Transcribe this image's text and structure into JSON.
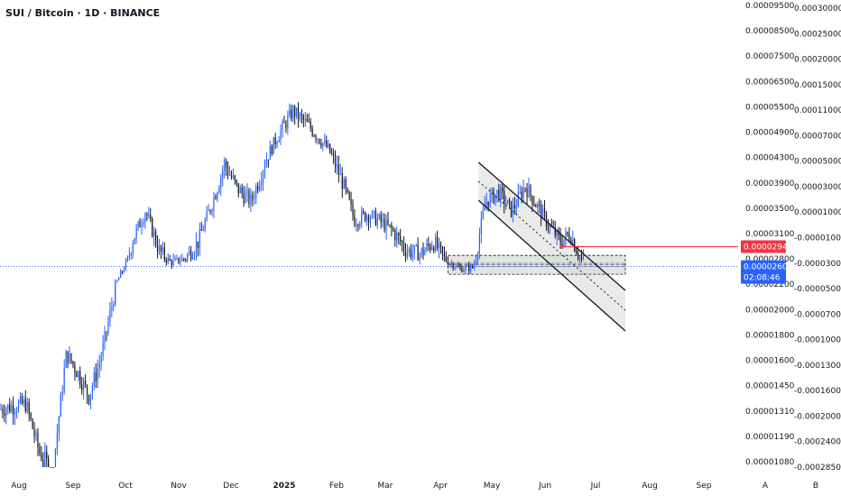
{
  "header": {
    "title": "SUI / Bitcoin · 1D · BINANCE"
  },
  "colors": {
    "up": "#2962ff",
    "down": "#131722",
    "alert": "#f23645",
    "accent": "#2962ff",
    "box": "#d9d9d9"
  },
  "chart_data": {
    "type": "candlestick",
    "title": "SUI / Bitcoin · 1D · BINANCE",
    "x_categories": [
      "Aug",
      "Sep",
      "Oct",
      "Nov",
      "Dec",
      "2025",
      "Feb",
      "Mar",
      "Apr",
      "May",
      "Jun",
      "Jul",
      "Aug",
      "Sep"
    ],
    "y_ticks_left": [
      "0.00009500",
      "0.00008500",
      "0.00007500",
      "0.00006500",
      "0.00005500",
      "0.00004900",
      "0.00004300",
      "0.00003900",
      "0.00003500",
      "0.00003100",
      "0.00002800",
      "0.00002200",
      "0.00002000",
      "0.00001800",
      "0.00001600",
      "0.00001450",
      "0.00001310",
      "0.00001190",
      "0.00001080"
    ],
    "y_ticks_right": [
      "0.00030000",
      "0.00025000",
      "0.00020000",
      "0.00015000",
      "0.00011000",
      "0.00007000",
      "0.00005000",
      "0.00003000",
      "0.00001000",
      "-0.00001000",
      "-0.00003000",
      "-0.00005000",
      "-0.00007000",
      "-0.00010000",
      "-0.00013000",
      "-0.00016000",
      "-0.00020000",
      "-0.00024000",
      "-0.00028500"
    ],
    "price_labels": {
      "alert": "0.00002941",
      "last": "0.00002604",
      "countdown": "02:08:46"
    },
    "scale_buttons": [
      "A",
      "B"
    ],
    "price_path": [
      [
        "Aug",
        1.35e-05
      ],
      [
        "Aug",
        1.12e-05
      ],
      [
        "Aug",
        1.04e-05
      ],
      [
        "Aug",
        1.65e-05
      ],
      [
        "Sep",
        1.52e-05
      ],
      [
        "Sep",
        1.39e-05
      ],
      [
        "Sep",
        1.58e-05
      ],
      [
        "Sep",
        1.95e-05
      ],
      [
        "Sep",
        2.4e-05
      ],
      [
        "Oct",
        3e-05
      ],
      [
        "Oct",
        3.45e-05
      ],
      [
        "Oct",
        2.9e-05
      ],
      [
        "Oct",
        2.7e-05
      ],
      [
        "Nov",
        2.8e-05
      ],
      [
        "Nov",
        3e-05
      ],
      [
        "Nov",
        3.55e-05
      ],
      [
        "Nov",
        4.2e-05
      ],
      [
        "Dec",
        3.8e-05
      ],
      [
        "Dec",
        3.6e-05
      ],
      [
        "Dec",
        4.2e-05
      ],
      [
        "Dec",
        4.8e-05
      ],
      [
        "2025",
        5.4e-05
      ],
      [
        "2025",
        5e-05
      ],
      [
        "2025",
        4.5e-05
      ],
      [
        "Feb",
        3.9e-05
      ],
      [
        "Feb",
        3.3e-05
      ],
      [
        "Feb",
        3.4e-05
      ],
      [
        "Feb",
        3.3e-05
      ],
      [
        "Mar",
        3.15e-05
      ],
      [
        "Mar",
        2.9e-05
      ],
      [
        "Mar",
        2.85e-05
      ],
      [
        "Mar",
        3e-05
      ],
      [
        "Apr",
        2.75e-05
      ],
      [
        "Apr",
        2.55e-05
      ],
      [
        "Apr",
        2.58e-05
      ],
      [
        "Apr",
        3.6e-05
      ],
      [
        "May",
        3.75e-05
      ],
      [
        "May",
        3.45e-05
      ],
      [
        "May",
        3.85e-05
      ],
      [
        "May",
        3.5e-05
      ],
      [
        "Jun",
        3.2e-05
      ],
      [
        "Jun",
        3e-05
      ],
      [
        "Jun",
        3.1e-05
      ],
      [
        "Jun",
        2.8e-05
      ],
      [
        "Jun",
        2.6e-05
      ]
    ],
    "annotations": [
      {
        "type": "parallel-channel",
        "from": "May",
        "to": "Jul",
        "direction": "down"
      },
      {
        "type": "range-box",
        "from": "Apr",
        "to": "Jul",
        "high": 2.84e-05,
        "low": 2.42e-05
      },
      {
        "type": "horizontal-ray",
        "value": 2.941e-05,
        "color": "alert"
      },
      {
        "type": "last-price-line",
        "value": 2.604e-05,
        "style": "dotted"
      }
    ],
    "grid": false,
    "legend": "none"
  }
}
